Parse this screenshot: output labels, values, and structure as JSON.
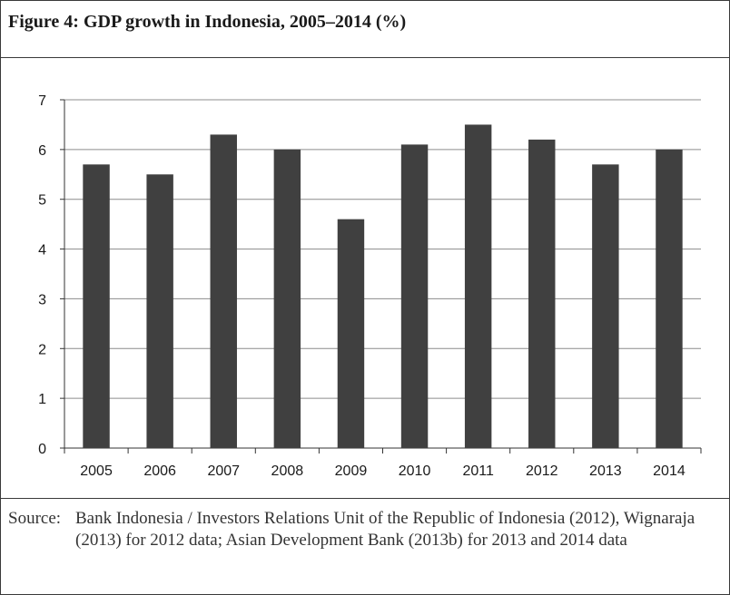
{
  "figure": {
    "title": "Figure 4: GDP growth in Indonesia, 2005–2014 (%)",
    "source_label": "Source:",
    "source_text": "Bank Indonesia / Investors Relations Unit of the Republic of Indonesia (2012), Wignaraja (2013) for 2012 data; Asian Development Bank (2013b) for 2013 and 2014 data"
  },
  "chart_data": {
    "type": "bar",
    "title": "Figure 4: GDP growth in Indonesia, 2005–2014 (%)",
    "xlabel": "",
    "ylabel": "",
    "categories": [
      "2005",
      "2006",
      "2007",
      "2008",
      "2009",
      "2010",
      "2011",
      "2012",
      "2013",
      "2014"
    ],
    "values": [
      5.7,
      5.5,
      6.3,
      6.0,
      4.6,
      6.1,
      6.5,
      6.2,
      5.7,
      6.0
    ],
    "ylim": [
      0,
      7
    ],
    "yticks": [
      "0",
      "1",
      "2",
      "3",
      "4",
      "5",
      "6",
      "7"
    ],
    "grid": true,
    "legend": "none",
    "bar_color": "#404040",
    "grid_color": "#8c8c8c"
  }
}
